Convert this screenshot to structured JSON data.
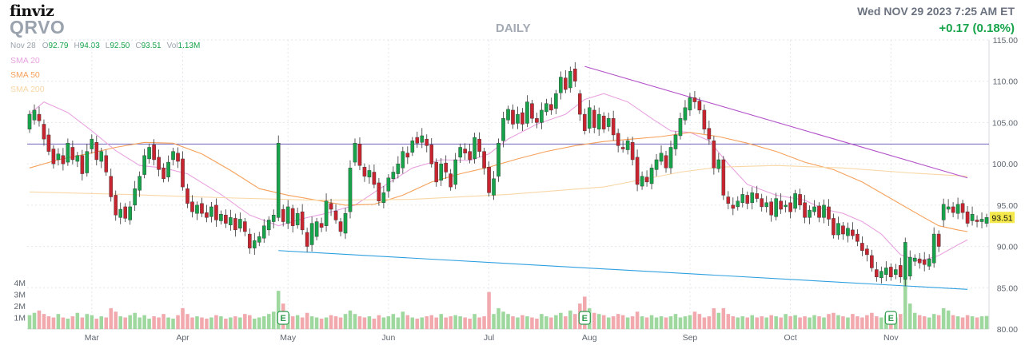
{
  "header": {
    "logo": "finviz",
    "ticker": "QRVO",
    "period": "DAILY",
    "timestamp": "Wed NOV 29 2023 7:25 AM ET",
    "change": "+0.17 (0.18%)"
  },
  "ohlc_bar": {
    "date": "Nov 28",
    "open_label": "O",
    "open": "92.79",
    "high_label": "H",
    "high": "94.03",
    "low_label": "L",
    "low": "92.50",
    "close_label": "C",
    "close": "93.51",
    "volume_label": "Vol",
    "volume": "1.13M"
  },
  "legend": [
    {
      "label": "SMA 20",
      "color": "#e9a3e0"
    },
    {
      "label": "SMA 50",
      "color": "#f6a15a"
    },
    {
      "label": "SMA 200",
      "color": "#f8d7a6"
    }
  ],
  "colors": {
    "up": "#16a34a",
    "down": "#c8242f",
    "vol_up": "#9fd89f",
    "vol_down": "#f2a9ae",
    "resistance": "#b352c9",
    "support": "#2f9fe0",
    "level": "#5a4fb0"
  },
  "chart_data": {
    "type": "candlestick",
    "price_axis": {
      "ylim": [
        80,
        115
      ],
      "ticks": [
        "80.00",
        "85.00",
        "90.00",
        "95.00",
        "100.00",
        "105.00",
        "110.00",
        "115.00"
      ]
    },
    "volume_axis": {
      "ticks": [
        "1M",
        "2M",
        "3M",
        "4M"
      ]
    },
    "x_ticks": [
      "Mar",
      "Apr",
      "May",
      "Jun",
      "Jul",
      "Aug",
      "Sep",
      "Oct",
      "Nov"
    ],
    "x_tick_index": [
      13,
      32,
      54,
      75,
      96,
      117,
      138,
      159,
      180
    ],
    "last_price_label": "93.51",
    "earnings_markers": [
      {
        "label": "E",
        "index": 53
      },
      {
        "label": "E",
        "index": 116
      },
      {
        "label": "E",
        "index": 180
      }
    ],
    "horizontal_level": 102.4,
    "trendlines": [
      {
        "name": "resistance",
        "from": [
          116,
          111.8
        ],
        "to": [
          196,
          98.3
        ]
      },
      {
        "name": "support",
        "from": [
          52,
          89.5
        ],
        "to": [
          196,
          84.8
        ]
      }
    ],
    "candles": [
      [
        104.2,
        106.0
      ],
      [
        105.3,
        106.5
      ],
      [
        106.0,
        105.2
      ],
      [
        104.8,
        103.0
      ],
      [
        103.5,
        101.5
      ],
      [
        101.8,
        100.0
      ],
      [
        100.5,
        101.2
      ],
      [
        101.0,
        100.0
      ],
      [
        100.2,
        102.5
      ],
      [
        102.0,
        100.5
      ],
      [
        100.3,
        101.0
      ],
      [
        101.0,
        98.8
      ],
      [
        98.9,
        101.5
      ],
      [
        101.8,
        103.0
      ],
      [
        102.6,
        100.5
      ],
      [
        100.3,
        101.5
      ],
      [
        101.0,
        99.0
      ],
      [
        98.5,
        96.0
      ],
      [
        96.2,
        93.8
      ],
      [
        93.5,
        94.5
      ],
      [
        94.8,
        93.4
      ],
      [
        93.2,
        94.8
      ],
      [
        95.0,
        97.0
      ],
      [
        96.8,
        98.5
      ],
      [
        98.7,
        101.0
      ],
      [
        100.6,
        102.0
      ],
      [
        102.3,
        100.5
      ],
      [
        100.8,
        99.3
      ],
      [
        99.5,
        98.2
      ],
      [
        98.4,
        100.2
      ],
      [
        100.5,
        101.5
      ],
      [
        101.3,
        100.3
      ],
      [
        100.6,
        97.2
      ],
      [
        97.0,
        95.2
      ],
      [
        95.4,
        94.2
      ],
      [
        94.0,
        95.0
      ],
      [
        95.2,
        94.0
      ],
      [
        94.1,
        93.5
      ],
      [
        93.6,
        94.8
      ],
      [
        95.0,
        93.2
      ],
      [
        93.1,
        93.9
      ],
      [
        93.8,
        92.8
      ],
      [
        92.6,
        93.5
      ],
      [
        93.4,
        92.0
      ],
      [
        92.2,
        93.3
      ],
      [
        93.0,
        91.8
      ],
      [
        91.5,
        89.8
      ],
      [
        89.8,
        90.7
      ],
      [
        90.5,
        91.2
      ],
      [
        91.0,
        92.5
      ],
      [
        92.0,
        93.2
      ],
      [
        93.0,
        93.8
      ],
      [
        93.5,
        102.5
      ],
      [
        94.5,
        93.0
      ],
      [
        92.8,
        94.8
      ],
      [
        94.6,
        92.5
      ],
      [
        92.6,
        94.0
      ],
      [
        94.2,
        92.0
      ],
      [
        91.7,
        90.0
      ],
      [
        90.2,
        92.8
      ],
      [
        91.2,
        93.0
      ],
      [
        92.8,
        92.3
      ],
      [
        92.5,
        95.5
      ],
      [
        95.2,
        94.5
      ],
      [
        94.3,
        93.2
      ],
      [
        93.0,
        91.8
      ],
      [
        91.6,
        94.0
      ],
      [
        94.2,
        99.5
      ],
      [
        100.2,
        102.5
      ],
      [
        102.4,
        99.8
      ],
      [
        99.6,
        98.5
      ],
      [
        98.4,
        99.2
      ],
      [
        99.0,
        97.5
      ],
      [
        97.7,
        95.5
      ],
      [
        95.3,
        96.5
      ],
      [
        96.7,
        98.3
      ],
      [
        98.2,
        99.0
      ],
      [
        98.8,
        100.0
      ],
      [
        99.5,
        101.5
      ],
      [
        101.3,
        100.8
      ],
      [
        101.4,
        102.8
      ],
      [
        103.2,
        102.5
      ],
      [
        102.6,
        103.4
      ],
      [
        103.0,
        102.2
      ],
      [
        102.3,
        100.0
      ],
      [
        100.2,
        97.8
      ],
      [
        98.0,
        100.0
      ],
      [
        100.1,
        99.0
      ],
      [
        98.8,
        97.2
      ],
      [
        97.5,
        100.5
      ],
      [
        100.8,
        102.0
      ],
      [
        101.8,
        101.3
      ],
      [
        101.5,
        100.5
      ],
      [
        100.6,
        103.2
      ],
      [
        103.0,
        101.5
      ],
      [
        101.5,
        99.5
      ],
      [
        99.6,
        96.5
      ],
      [
        96.2,
        98.2
      ],
      [
        98.5,
        102.5
      ],
      [
        102.8,
        105.5
      ],
      [
        105.3,
        106.6
      ],
      [
        106.5,
        104.8
      ],
      [
        104.9,
        106.0
      ],
      [
        106.2,
        104.8
      ],
      [
        104.9,
        107.5
      ],
      [
        107.3,
        105.5
      ],
      [
        105.5,
        105.0
      ],
      [
        105.0,
        106.5
      ],
      [
        106.3,
        107.3
      ],
      [
        107.2,
        106.5
      ],
      [
        106.7,
        108.5
      ],
      [
        108.6,
        110.5
      ],
      [
        110.4,
        109.0
      ],
      [
        109.2,
        111.2
      ],
      [
        111.5,
        110.0
      ],
      [
        108.5,
        106.0
      ],
      [
        106.0,
        104.0
      ],
      [
        104.3,
        106.8
      ],
      [
        106.5,
        104.4
      ],
      [
        104.2,
        106.0
      ],
      [
        105.8,
        104.2
      ],
      [
        104.5,
        105.5
      ],
      [
        105.5,
        103.5
      ],
      [
        103.7,
        102.2
      ],
      [
        102.0,
        101.8
      ],
      [
        101.7,
        102.8
      ],
      [
        102.6,
        100.5
      ],
      [
        100.8,
        97.5
      ],
      [
        97.3,
        98.5
      ],
      [
        98.4,
        97.8
      ],
      [
        97.6,
        99.5
      ],
      [
        99.3,
        100.5
      ],
      [
        100.3,
        101.3
      ],
      [
        101.0,
        99.5
      ],
      [
        99.5,
        102.0
      ],
      [
        101.8,
        103.5
      ],
      [
        103.4,
        105.5
      ],
      [
        105.3,
        106.8
      ],
      [
        106.5,
        108.0
      ],
      [
        108.0,
        107.5
      ],
      [
        107.6,
        106.5
      ],
      [
        106.5,
        104.2
      ],
      [
        104.3,
        103.0
      ],
      [
        102.8,
        99.5
      ],
      [
        99.4,
        100.5
      ],
      [
        100.5,
        96.2
      ],
      [
        96.0,
        95.2
      ],
      [
        95.0,
        94.6
      ],
      [
        94.8,
        95.5
      ],
      [
        95.3,
        96.3
      ],
      [
        96.2,
        95.2
      ],
      [
        95.3,
        96.5
      ],
      [
        96.4,
        95.8
      ],
      [
        95.8,
        94.8
      ],
      [
        94.8,
        95.3
      ],
      [
        95.4,
        93.8
      ],
      [
        93.6,
        95.8
      ],
      [
        95.5,
        94.5
      ],
      [
        94.8,
        95.0
      ],
      [
        95.3,
        94.2
      ],
      [
        94.6,
        96.4
      ],
      [
        96.3,
        95.0
      ],
      [
        95.3,
        93.5
      ],
      [
        93.5,
        94.4
      ],
      [
        94.2,
        94.8
      ],
      [
        94.9,
        93.5
      ],
      [
        93.5,
        95.0
      ],
      [
        94.8,
        93.3
      ],
      [
        93.4,
        91.4
      ],
      [
        91.4,
        92.8
      ],
      [
        92.5,
        91.5
      ],
      [
        91.3,
        92.2
      ],
      [
        92.0,
        91.3
      ],
      [
        91.5,
        90.6
      ],
      [
        90.4,
        89.5
      ],
      [
        89.7,
        89.0
      ],
      [
        88.9,
        87.4
      ],
      [
        87.2,
        86.3
      ],
      [
        86.2,
        87.0
      ],
      [
        86.6,
        87.4
      ],
      [
        87.5,
        86.3
      ],
      [
        86.6,
        87.2
      ],
      [
        87.7,
        86.3
      ],
      [
        86.0,
        90.5
      ],
      [
        86.4,
        88.7
      ],
      [
        88.2,
        88.6
      ],
      [
        88.5,
        88.0
      ],
      [
        88.4,
        87.8
      ],
      [
        87.6,
        88.5
      ],
      [
        88.0,
        91.5
      ],
      [
        91.5,
        90.0
      ],
      [
        93.2,
        95.1
      ],
      [
        94.5,
        94.8
      ],
      [
        94.8,
        94.1
      ],
      [
        94.0,
        95.1
      ],
      [
        95.2,
        94.1
      ],
      [
        94.2,
        92.8
      ],
      [
        93.1,
        93.9
      ],
      [
        93.2,
        93.0
      ],
      [
        93.0,
        93.3
      ],
      [
        92.79,
        93.51
      ]
    ],
    "volume": [
      1.2,
      1.4,
      1.6,
      1.3,
      1.1,
      1.0,
      1.3,
      1.0,
      0.9,
      1.1,
      1.4,
      1.0,
      1.3,
      1.2,
      0.9,
      1.1,
      1.0,
      1.8,
      1.5,
      1.1,
      1.0,
      1.2,
      1.4,
      1.0,
      1.2,
      0.9,
      1.1,
      1.0,
      1.3,
      1.0,
      0.9,
      1.2,
      1.8,
      1.3,
      1.0,
      1.1,
      1.0,
      0.9,
      1.0,
      1.2,
      1.1,
      0.9,
      1.0,
      1.1,
      1.0,
      1.3,
      1.2,
      0.9,
      1.0,
      1.1,
      1.3,
      1.5,
      3.3,
      2.2,
      1.3,
      1.1,
      1.2,
      1.0,
      1.4,
      1.1,
      1.0,
      0.9,
      1.0,
      1.2,
      1.1,
      1.0,
      1.3,
      1.6,
      1.3,
      1.1,
      1.0,
      1.1,
      0.9,
      1.2,
      1.0,
      1.1,
      1.3,
      1.0,
      1.5,
      1.2,
      1.0,
      0.9,
      1.0,
      1.1,
      1.2,
      1.0,
      1.3,
      1.0,
      1.1,
      1.2,
      1.1,
      1.0,
      0.9,
      1.3,
      1.0,
      1.1,
      3.2,
      1.3,
      1.8,
      1.5,
      1.3,
      1.1,
      1.0,
      1.2,
      1.1,
      1.0,
      0.9,
      1.3,
      1.1,
      1.0,
      1.2,
      1.4,
      1.1,
      1.6,
      1.3,
      2.2,
      2.8,
      1.8,
      1.4,
      1.3,
      1.2,
      1.0,
      1.1,
      1.3,
      1.2,
      1.0,
      1.1,
      1.5,
      1.1,
      1.0,
      1.2,
      1.0,
      1.1,
      1.0,
      1.1,
      1.3,
      1.0,
      1.1,
      1.2,
      1.5,
      1.3,
      1.0,
      1.1,
      1.8,
      1.4,
      1.8,
      1.3,
      1.1,
      1.0,
      1.1,
      1.0,
      1.2,
      1.0,
      1.1,
      1.0,
      1.2,
      1.1,
      1.0,
      1.3,
      1.1,
      1.2,
      1.0,
      1.1,
      1.0,
      1.2,
      1.1,
      1.0,
      1.3,
      1.4,
      1.2,
      1.1,
      1.0,
      1.3,
      1.1,
      1.0,
      1.2,
      1.4,
      1.1,
      1.0,
      1.2,
      1.1,
      1.0,
      1.3,
      4.5,
      2.2,
      1.4,
      1.2,
      1.1,
      1.0,
      1.3,
      1.2,
      1.8,
      1.6,
      1.2,
      1.1,
      1.0,
      1.2,
      1.1,
      1.0,
      1.1,
      1.13
    ],
    "sma": [
      {
        "name": "SMA 20",
        "color": "#e9a3e0",
        "points": [
          [
            0,
            106.0
          ],
          [
            3,
            107.5
          ],
          [
            8,
            106.2
          ],
          [
            13,
            104.0
          ],
          [
            18,
            101.6
          ],
          [
            23,
            99.8
          ],
          [
            28,
            99.5
          ],
          [
            33,
            98.8
          ],
          [
            40,
            96.3
          ],
          [
            46,
            93.8
          ],
          [
            52,
            92.5
          ],
          [
            58,
            93.5
          ],
          [
            62,
            94.0
          ],
          [
            68,
            95.0
          ],
          [
            74,
            97.3
          ],
          [
            80,
            99.5
          ],
          [
            86,
            100.5
          ],
          [
            92,
            100.4
          ],
          [
            96,
            101.2
          ],
          [
            100,
            103.0
          ],
          [
            106,
            104.8
          ],
          [
            112,
            106.0
          ],
          [
            116,
            107.8
          ],
          [
            120,
            108.5
          ],
          [
            125,
            107.5
          ],
          [
            130,
            105.5
          ],
          [
            134,
            104.0
          ],
          [
            138,
            103.8
          ],
          [
            142,
            102.8
          ],
          [
            146,
            100.0
          ],
          [
            150,
            97.5
          ],
          [
            156,
            96.2
          ],
          [
            162,
            95.6
          ],
          [
            166,
            94.5
          ],
          [
            170,
            94.0
          ],
          [
            174,
            93.0
          ],
          [
            178,
            91.5
          ],
          [
            182,
            89.0
          ],
          [
            186,
            88.2
          ],
          [
            190,
            88.9
          ],
          [
            194,
            90.2
          ],
          [
            196,
            90.8
          ]
        ]
      },
      {
        "name": "SMA 50",
        "color": "#f6a15a",
        "points": [
          [
            0,
            99.5
          ],
          [
            6,
            100.5
          ],
          [
            12,
            101.2
          ],
          [
            18,
            102.0
          ],
          [
            24,
            102.6
          ],
          [
            30,
            102.5
          ],
          [
            36,
            101.2
          ],
          [
            42,
            99.2
          ],
          [
            48,
            97.0
          ],
          [
            54,
            96.2
          ],
          [
            60,
            95.6
          ],
          [
            66,
            95.0
          ],
          [
            72,
            95.1
          ],
          [
            78,
            96.2
          ],
          [
            84,
            97.8
          ],
          [
            90,
            98.8
          ],
          [
            96,
            99.6
          ],
          [
            102,
            100.6
          ],
          [
            108,
            101.5
          ],
          [
            114,
            102.2
          ],
          [
            120,
            102.7
          ],
          [
            126,
            103.0
          ],
          [
            132,
            103.3
          ],
          [
            138,
            103.8
          ],
          [
            144,
            103.3
          ],
          [
            150,
            102.5
          ],
          [
            156,
            101.5
          ],
          [
            162,
            100.2
          ],
          [
            168,
            99.3
          ],
          [
            174,
            97.8
          ],
          [
            180,
            95.8
          ],
          [
            186,
            93.8
          ],
          [
            190,
            92.5
          ],
          [
            194,
            92.0
          ],
          [
            196,
            91.8
          ]
        ]
      },
      {
        "name": "SMA 200",
        "color": "#f8d7a6",
        "points": [
          [
            0,
            96.6
          ],
          [
            20,
            96.3
          ],
          [
            40,
            95.9
          ],
          [
            60,
            95.6
          ],
          [
            80,
            95.7
          ],
          [
            100,
            96.3
          ],
          [
            120,
            97.2
          ],
          [
            136,
            99.0
          ],
          [
            144,
            99.6
          ],
          [
            156,
            99.8
          ],
          [
            170,
            99.5
          ],
          [
            184,
            98.9
          ],
          [
            196,
            98.5
          ]
        ]
      }
    ]
  }
}
